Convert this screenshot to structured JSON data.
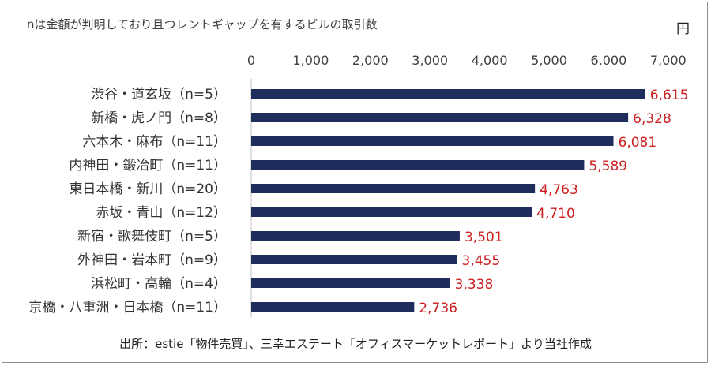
{
  "note": "nは金額が判明しており且つレントギャップを有するビルの取引数",
  "unit": "円",
  "source": "出所：estie「物件売買」、三幸エステート「オフィスマーケットレポート」より当社作成",
  "chart_data": {
    "type": "bar",
    "orientation": "horizontal",
    "title": "",
    "xlabel": "",
    "ylabel": "",
    "unit": "円",
    "xlim": [
      0,
      7000
    ],
    "ticks": [
      0,
      1000,
      2000,
      3000,
      4000,
      5000,
      6000,
      7000
    ],
    "tick_labels": [
      "0",
      "1,000",
      "2,000",
      "3,000",
      "4,000",
      "5,000",
      "6,000",
      "7,000"
    ],
    "categories": [
      "渋谷・道玄坂（n=5）",
      "新橋・虎ノ門（n=8）",
      "六本木・麻布（n=11）",
      "内神田・鍛冶町（n=11）",
      "東日本橋・新川（n=20）",
      "赤坂・青山（n=12）",
      "新宿・歌舞伎町（n=5）",
      "外神田・岩本町（n=9）",
      "浜松町・高輪（n=4）",
      "京橋・八重洲・日本橋（n=11）"
    ],
    "values": [
      6615,
      6328,
      6081,
      5589,
      4763,
      4710,
      3501,
      3455,
      3338,
      2736
    ],
    "value_labels": [
      "6,615",
      "6,328",
      "6,081",
      "5,589",
      "4,763",
      "4,710",
      "3,501",
      "3,455",
      "3,338",
      "2,736"
    ],
    "grid": false,
    "colors": {
      "bar": "#1f2d5c",
      "value_label": "#cc1f1f",
      "axis": "#bfbfbf"
    }
  }
}
